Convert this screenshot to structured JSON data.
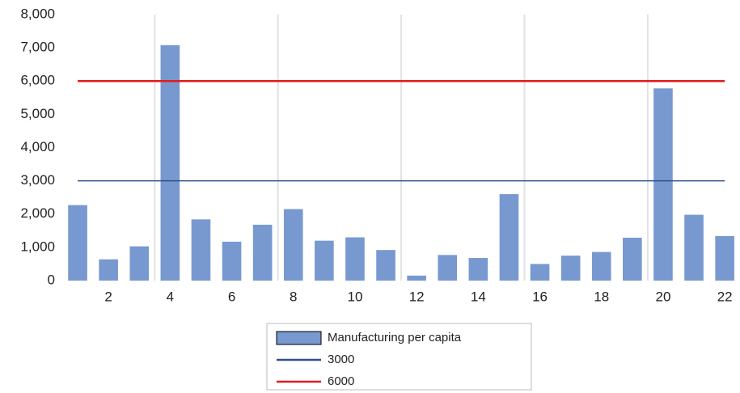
{
  "chart_data": {
    "type": "bar",
    "categories": [
      null,
      2,
      null,
      4,
      null,
      6,
      null,
      8,
      null,
      10,
      null,
      12,
      null,
      14,
      null,
      16,
      null,
      18,
      null,
      20,
      null,
      22
    ],
    "series": [
      {
        "name": "Manufacturing per capita",
        "type": "bar",
        "color": "#7898d0",
        "values": [
          2270,
          640,
          1030,
          7080,
          1840,
          1170,
          1680,
          2150,
          1200,
          1300,
          920,
          150,
          770,
          680,
          2600,
          500,
          750,
          860,
          1290,
          5780,
          1980,
          1340
        ]
      },
      {
        "name": "3000",
        "type": "line",
        "color": "#2f4f8c",
        "values": [
          3000,
          3000,
          3000,
          3000,
          3000,
          3000,
          3000,
          3000,
          3000,
          3000,
          3000,
          3000,
          3000,
          3000,
          3000,
          3000,
          3000,
          3000,
          3000,
          3000,
          3000,
          3000
        ]
      },
      {
        "name": "6000",
        "type": "line",
        "color": "#e31a1c",
        "values": [
          6000,
          6000,
          6000,
          6000,
          6000,
          6000,
          6000,
          6000,
          6000,
          6000,
          6000,
          6000,
          6000,
          6000,
          6000,
          6000,
          6000,
          6000,
          6000,
          6000,
          6000,
          6000
        ]
      }
    ],
    "ylim": [
      0,
      8000
    ],
    "yticks": [
      0,
      {
        "value": 1000,
        "label": "1,000"
      },
      {
        "value": 2000,
        "label": "2,000"
      },
      {
        "value": 3000,
        "label": "3,000"
      },
      {
        "value": 4000,
        "label": "4,000"
      },
      {
        "value": 5000,
        "label": "5,000"
      },
      {
        "value": 6000,
        "label": "6,000"
      },
      {
        "value": 7000,
        "label": "7,000"
      },
      {
        "value": 8000,
        "label": "8,000"
      }
    ],
    "grid": false,
    "legend": "bottom"
  }
}
